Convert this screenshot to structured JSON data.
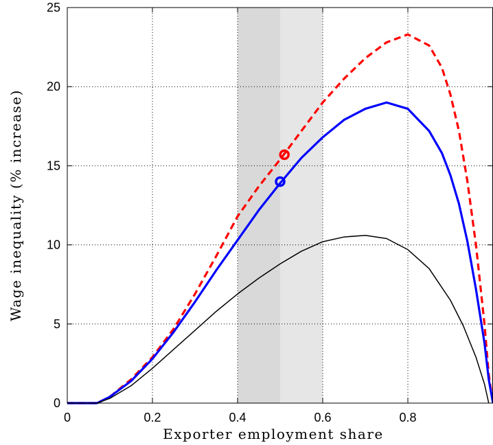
{
  "chart_data": {
    "type": "line",
    "title": "",
    "xlabel": "Exporter employment share",
    "ylabel": "Wage inequality (% increase)",
    "xlim": [
      0,
      1
    ],
    "ylim": [
      0,
      25
    ],
    "xticks": [
      0,
      0.2,
      0.4,
      0.6,
      0.8
    ],
    "xtick_labels": [
      "0",
      "0.2",
      "0.4",
      "0.6",
      "0.8"
    ],
    "yticks": [
      0,
      5,
      10,
      15,
      20,
      25
    ],
    "ytick_labels": [
      "0",
      "5",
      "10",
      "15",
      "20",
      "25"
    ],
    "grid": true,
    "shaded_regions": [
      {
        "x": [
          0.4,
          0.5
        ],
        "color": "#d9d9d9"
      },
      {
        "x": [
          0.5,
          0.6
        ],
        "color": "#e6e6e6"
      }
    ],
    "series": [
      {
        "style": "dashed",
        "color": "#ff0000",
        "x": [
          0,
          0.07,
          0.1,
          0.15,
          0.2,
          0.25,
          0.3,
          0.35,
          0.4,
          0.45,
          0.5,
          0.55,
          0.6,
          0.65,
          0.7,
          0.75,
          0.8,
          0.85,
          0.88,
          0.9,
          0.92,
          0.94,
          0.96,
          0.98,
          0.99,
          1.0
        ],
        "y": [
          0,
          0,
          0.4,
          1.5,
          2.9,
          4.7,
          6.9,
          9.3,
          11.8,
          13.7,
          15.4,
          17.2,
          19.0,
          20.5,
          21.8,
          22.8,
          23.3,
          22.6,
          21.2,
          19.5,
          17.2,
          14.0,
          10.0,
          5.0,
          1.8,
          0
        ]
      },
      {
        "style": "solid",
        "color": "#0000ff",
        "x": [
          0,
          0.07,
          0.1,
          0.15,
          0.2,
          0.25,
          0.3,
          0.35,
          0.4,
          0.45,
          0.5,
          0.55,
          0.6,
          0.65,
          0.7,
          0.75,
          0.8,
          0.85,
          0.88,
          0.9,
          0.92,
          0.94,
          0.96,
          0.98,
          0.99,
          1.0
        ],
        "y": [
          0,
          0,
          0.4,
          1.4,
          2.8,
          4.5,
          6.4,
          8.4,
          10.3,
          12.2,
          13.9,
          15.5,
          16.8,
          17.9,
          18.6,
          19.0,
          18.6,
          17.2,
          15.8,
          14.4,
          12.6,
          10.2,
          7.2,
          3.8,
          1.5,
          0
        ]
      },
      {
        "style": "solid-thin",
        "color": "#000000",
        "x": [
          0,
          0.07,
          0.1,
          0.15,
          0.2,
          0.25,
          0.3,
          0.35,
          0.4,
          0.45,
          0.5,
          0.55,
          0.6,
          0.65,
          0.7,
          0.75,
          0.8,
          0.85,
          0.9,
          0.93,
          0.96,
          0.98,
          0.99
        ],
        "y": [
          0,
          0,
          0.3,
          1.1,
          2.2,
          3.4,
          4.6,
          5.8,
          6.9,
          7.9,
          8.8,
          9.6,
          10.2,
          10.5,
          10.6,
          10.4,
          9.7,
          8.5,
          6.5,
          4.9,
          2.9,
          1.2,
          0
        ]
      }
    ],
    "markers": [
      {
        "x": 0.51,
        "y": 15.7,
        "color": "#ff0000",
        "shape": "circle"
      },
      {
        "x": 0.5,
        "y": 14.0,
        "color": "#0000ff",
        "shape": "circle"
      }
    ]
  }
}
